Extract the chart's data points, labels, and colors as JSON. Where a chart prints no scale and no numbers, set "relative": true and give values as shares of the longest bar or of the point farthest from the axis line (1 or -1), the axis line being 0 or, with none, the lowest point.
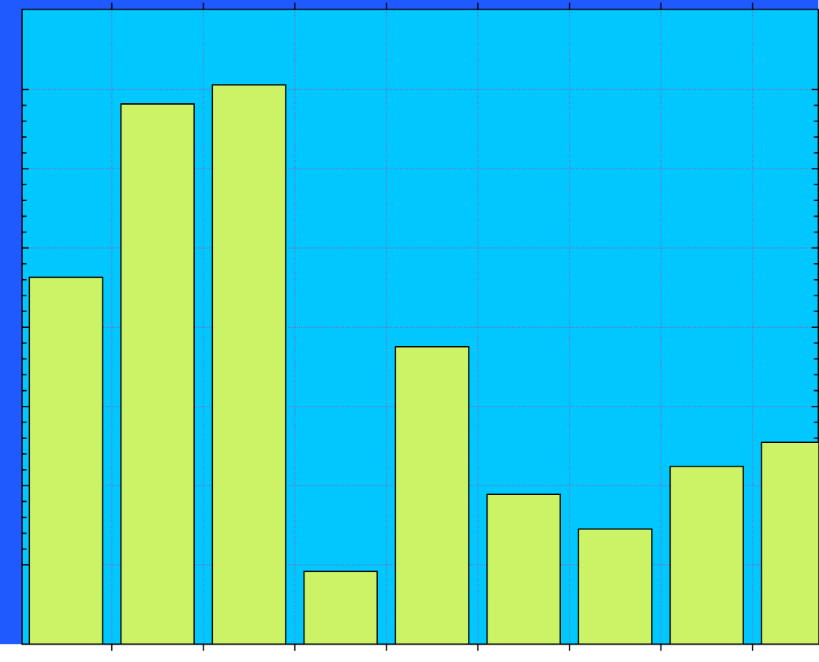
{
  "chart_data": {
    "type": "bar",
    "relative": true,
    "grid": true,
    "categories": [
      null,
      null,
      null,
      null,
      null,
      null,
      null,
      null,
      null
    ],
    "values": [
      0.656,
      0.966,
      1,
      0.13,
      0.532,
      0.268,
      0.206,
      0.318,
      0.361
    ],
    "color": "#ccf266"
  }
}
